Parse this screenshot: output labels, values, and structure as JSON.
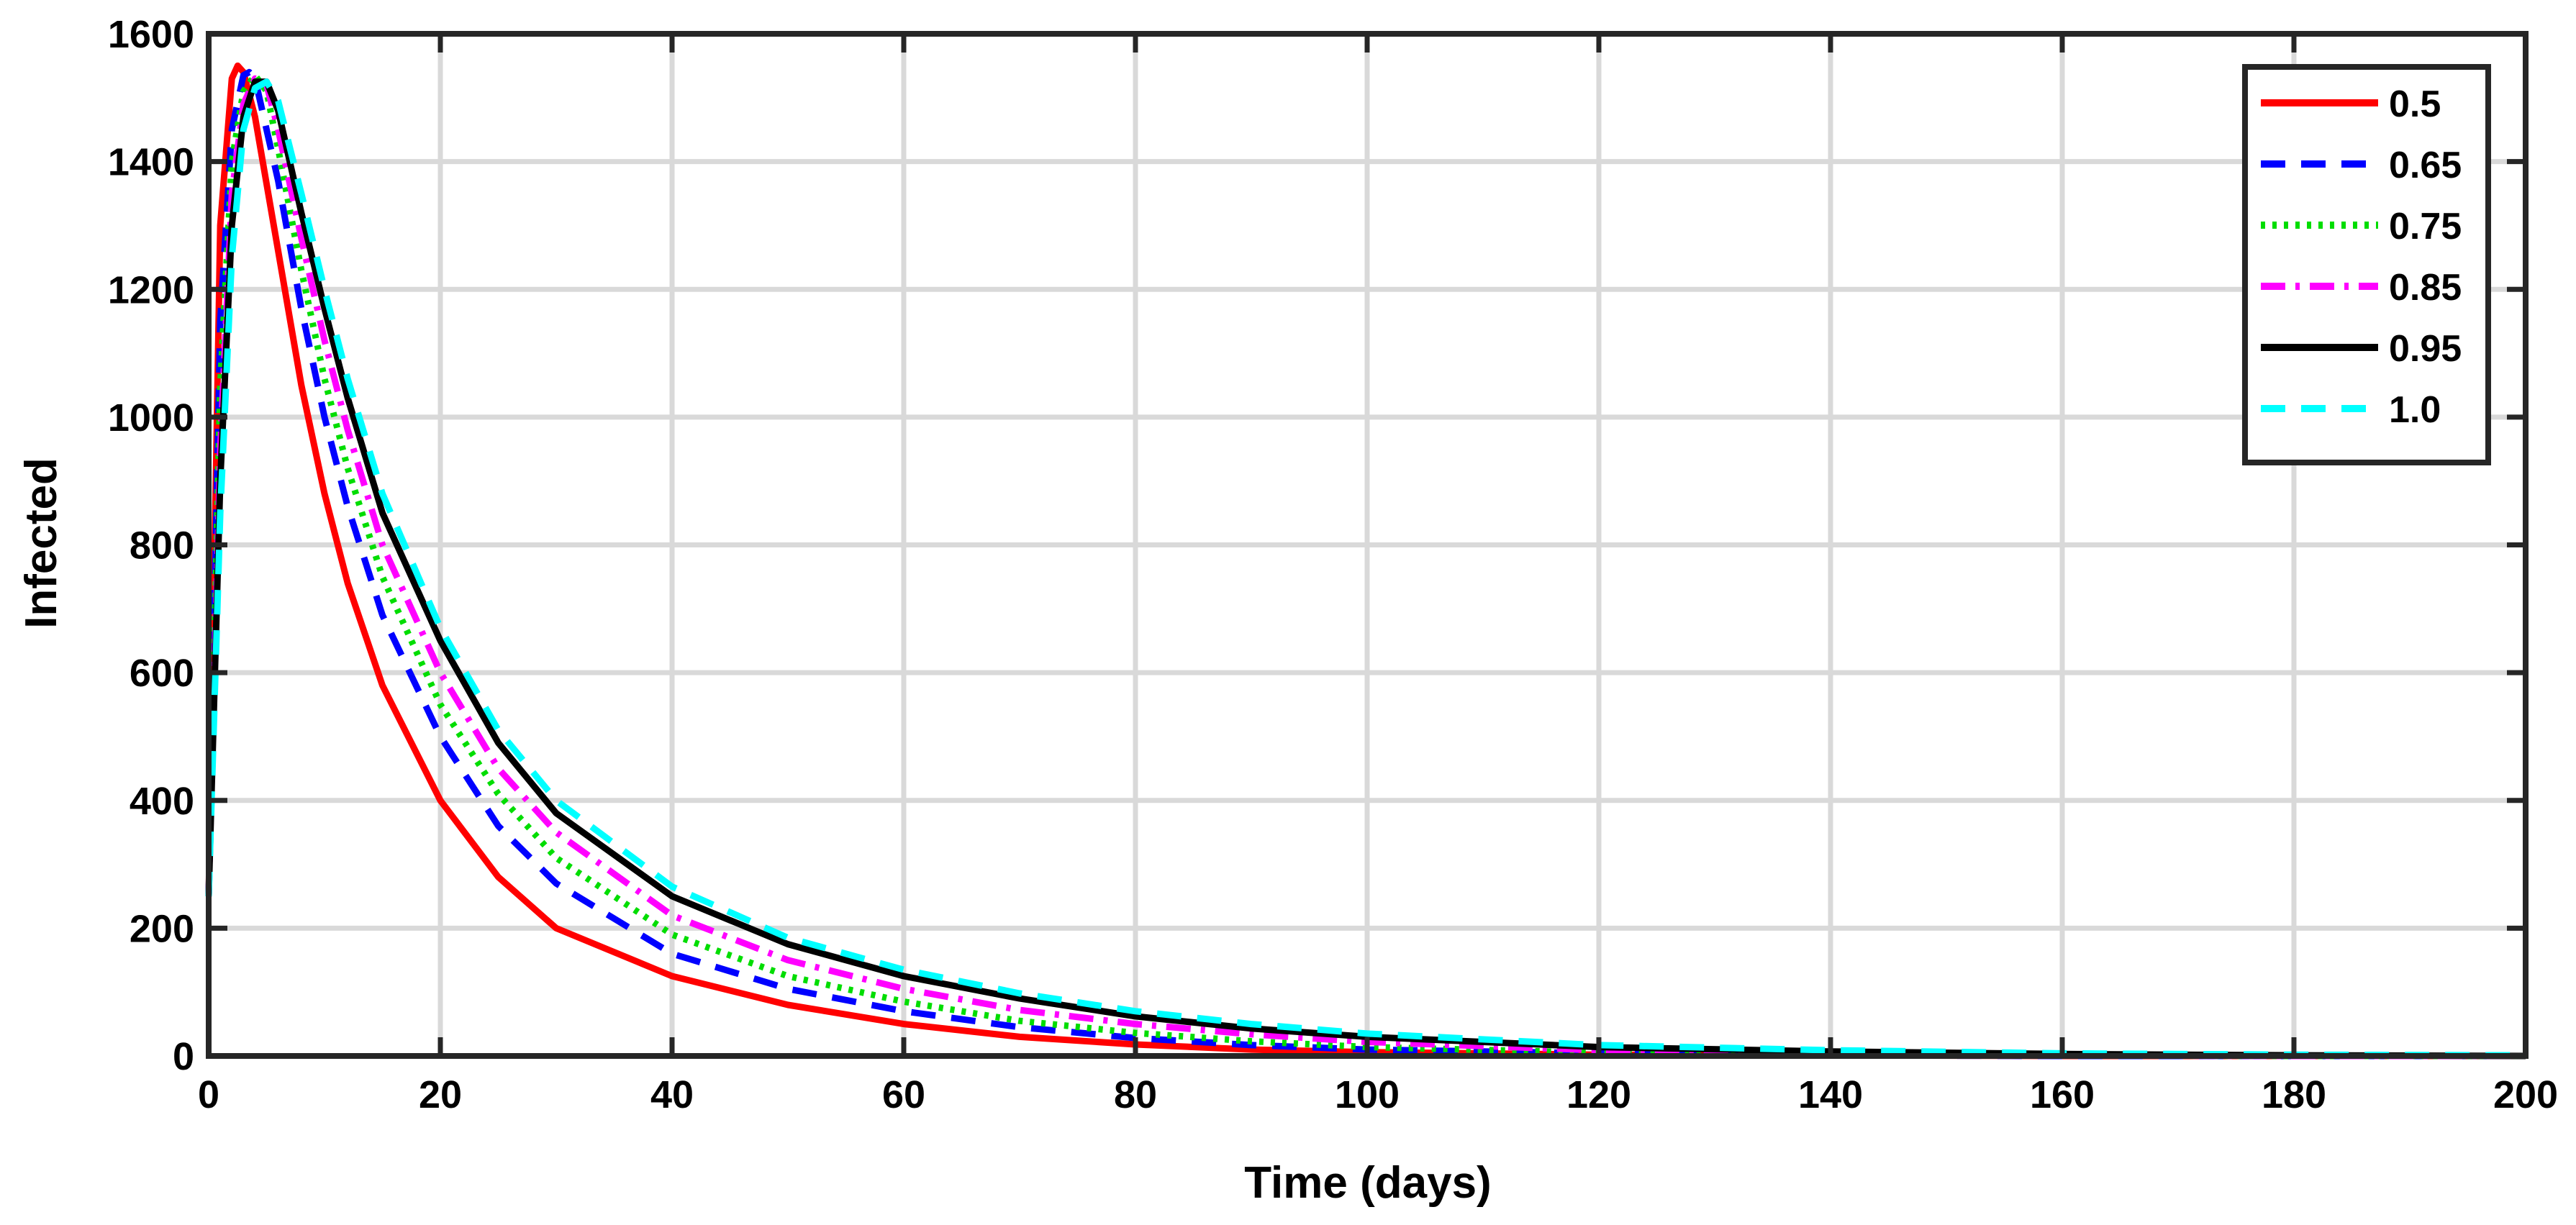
{
  "chart_data": {
    "type": "line",
    "title": "",
    "xlabel": "Time (days)",
    "ylabel": "Infected",
    "xlim": [
      0,
      200
    ],
    "ylim": [
      0,
      1600
    ],
    "xticks": [
      0,
      20,
      40,
      60,
      80,
      100,
      120,
      140,
      160,
      180,
      200
    ],
    "yticks": [
      0,
      200,
      400,
      600,
      800,
      1000,
      1200,
      1400,
      1600
    ],
    "grid": true,
    "legend_position": "top-right",
    "series": [
      {
        "name": "0.5",
        "color": "#ff0000",
        "style": "solid",
        "x": [
          0,
          1,
          2,
          2.5,
          3,
          4,
          6,
          8,
          10,
          12,
          15,
          20,
          25,
          30,
          40,
          50,
          60,
          70,
          80,
          90,
          100,
          120,
          140,
          160,
          180,
          200
        ],
        "y": [
          250,
          1300,
          1530,
          1550,
          1540,
          1470,
          1260,
          1050,
          880,
          740,
          580,
          400,
          280,
          200,
          125,
          80,
          50,
          30,
          18,
          10,
          6,
          2,
          1,
          0,
          0,
          0
        ]
      },
      {
        "name": "0.65",
        "color": "#0000ff",
        "style": "dashed",
        "x": [
          0,
          1,
          2,
          3,
          3.5,
          4,
          6,
          8,
          10,
          12,
          15,
          20,
          25,
          30,
          40,
          50,
          60,
          70,
          80,
          90,
          100,
          120,
          140,
          160,
          180,
          200
        ],
        "y": [
          250,
          1150,
          1450,
          1535,
          1540,
          1530,
          1370,
          1170,
          1000,
          860,
          690,
          500,
          360,
          270,
          160,
          105,
          70,
          45,
          28,
          17,
          10,
          4,
          1,
          0,
          0,
          0
        ]
      },
      {
        "name": "0.75",
        "color": "#00dd00",
        "style": "dotted",
        "x": [
          0,
          1,
          2,
          3,
          4,
          5,
          6,
          8,
          10,
          12,
          15,
          20,
          25,
          30,
          40,
          50,
          60,
          70,
          80,
          90,
          100,
          120,
          140,
          160,
          180,
          200
        ],
        "y": [
          250,
          1050,
          1400,
          1510,
          1535,
          1510,
          1420,
          1230,
          1060,
          920,
          750,
          550,
          410,
          310,
          190,
          125,
          85,
          55,
          36,
          23,
          14,
          5,
          2,
          1,
          0,
          0
        ]
      },
      {
        "name": "0.85",
        "color": "#ff00ff",
        "style": "dashdot",
        "x": [
          0,
          1,
          2,
          3,
          4,
          5,
          6,
          8,
          10,
          12,
          15,
          20,
          25,
          30,
          40,
          50,
          60,
          70,
          80,
          90,
          100,
          120,
          140,
          160,
          180,
          200
        ],
        "y": [
          250,
          950,
          1350,
          1490,
          1530,
          1520,
          1450,
          1280,
          1120,
          980,
          800,
          600,
          450,
          350,
          220,
          150,
          105,
          72,
          50,
          34,
          22,
          9,
          4,
          1,
          0,
          0
        ]
      },
      {
        "name": "0.95",
        "color": "#000000",
        "style": "solid",
        "x": [
          0,
          1,
          2,
          3,
          4,
          5,
          6,
          8,
          10,
          12,
          15,
          20,
          25,
          30,
          40,
          50,
          60,
          70,
          80,
          90,
          100,
          120,
          140,
          160,
          180,
          200
        ],
        "y": [
          250,
          900,
          1300,
          1470,
          1525,
          1525,
          1480,
          1320,
          1170,
          1030,
          850,
          650,
          490,
          380,
          250,
          175,
          125,
          90,
          62,
          43,
          30,
          14,
          7,
          3,
          1,
          0
        ]
      },
      {
        "name": "1.0",
        "color": "#00ffff",
        "style": "dashed",
        "x": [
          0,
          1,
          2,
          3,
          4,
          5,
          6,
          8,
          10,
          12,
          15,
          20,
          25,
          30,
          40,
          50,
          60,
          70,
          80,
          90,
          100,
          120,
          140,
          160,
          180,
          200
        ],
        "y": [
          250,
          850,
          1250,
          1450,
          1515,
          1525,
          1495,
          1350,
          1200,
          1060,
          880,
          670,
          510,
          400,
          265,
          185,
          135,
          98,
          70,
          50,
          35,
          17,
          9,
          4,
          2,
          1
        ]
      }
    ]
  }
}
